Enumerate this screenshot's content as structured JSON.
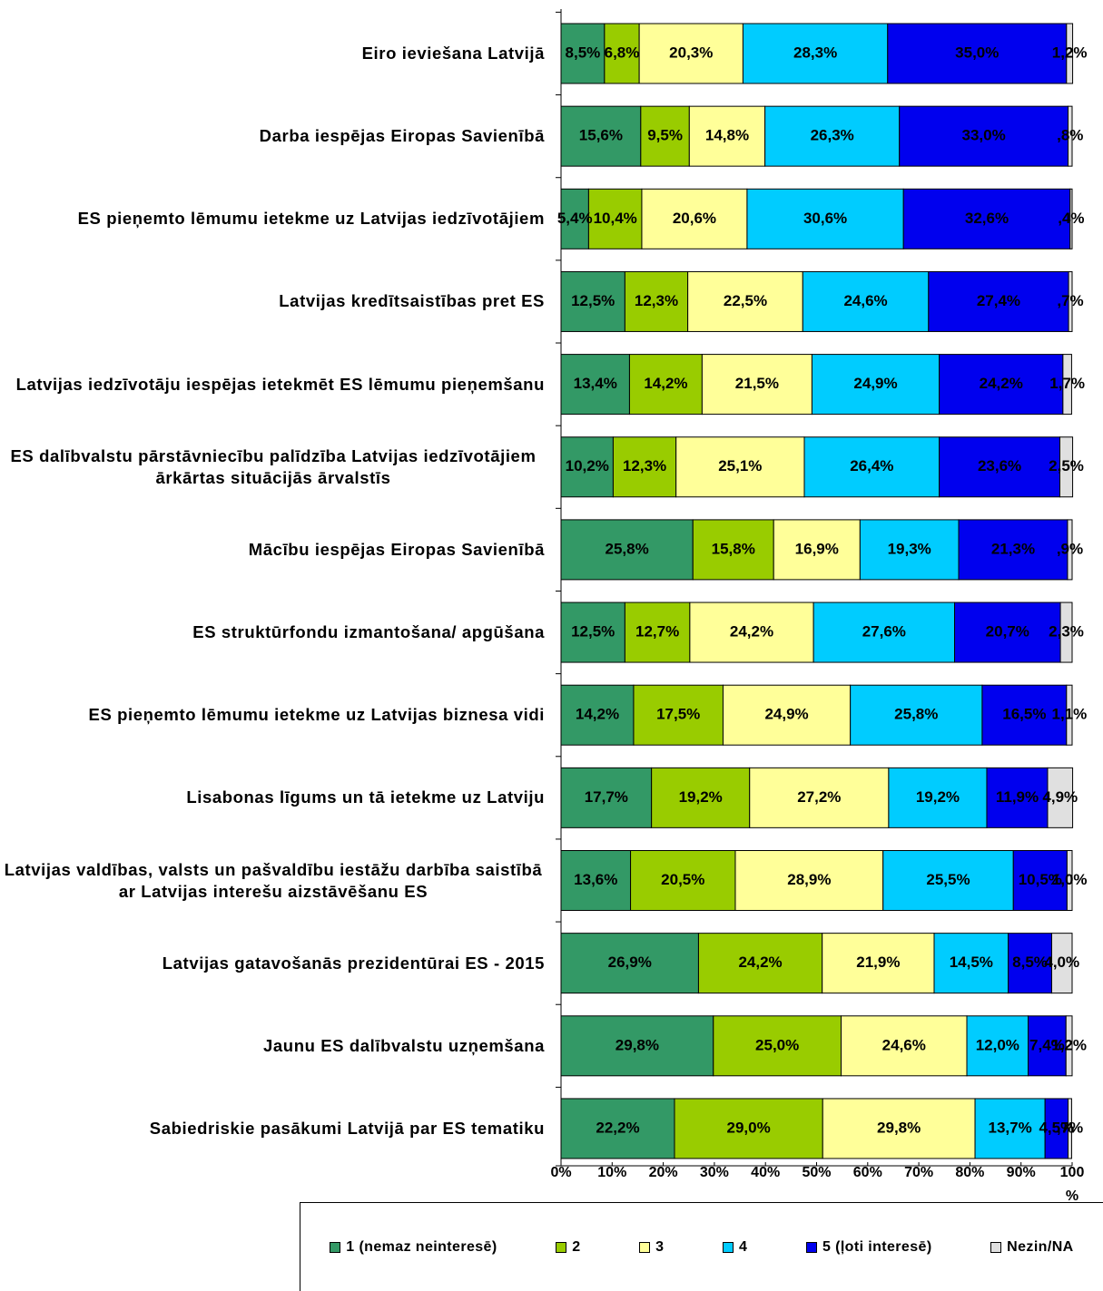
{
  "chart_data": {
    "type": "stacked-bar-horizontal",
    "categories": [
      "Eiro ieviešana Latvijā",
      "Darba iespējas Eiropas Savienībā",
      "ES pieņemto lēmumu ietekme uz Latvijas iedzīvotājiem",
      "Latvijas kredītsaistības pret ES",
      "Latvijas iedzīvotāju iespējas ietekmēt ES lēmumu pieņemšanu",
      "ES dalībvalstu pārstāvniecību palīdzība Latvijas iedzīvotājiem ārkārtas situācijās ārvalstīs",
      "Mācību iespējas Eiropas Savienībā",
      "ES struktūrfondu izmantošana/ apgūšana",
      "ES pieņemto lēmumu ietekme uz Latvijas biznesa vidi",
      "Lisabonas līgums un tā ietekme uz Latviju",
      "Latvijas valdības, valsts un pašvaldību iestāžu darbība saistībā ar Latvijas interešu aizstāvēšanu ES",
      "Latvijas gatavošanās prezidentūrai ES - 2015",
      "Jaunu ES dalībvalstu uzņemšana",
      "Sabiedriskie pasākumi Latvijā par ES tematiku"
    ],
    "series": [
      {
        "name": "1 (nemaz neinteresē)",
        "color": "#339966",
        "values": [
          8.5,
          15.6,
          5.4,
          12.5,
          13.4,
          10.2,
          25.8,
          12.5,
          14.2,
          17.7,
          13.6,
          26.9,
          29.8,
          22.2
        ],
        "value_labels": [
          "8,5%",
          "15,6%",
          "5,4%",
          "12,5%",
          "13,4%",
          "10,2%",
          "25,8%",
          "12,5%",
          "14,2%",
          "17,7%",
          "13,6%",
          "26,9%",
          "29,8%",
          "22,2%"
        ]
      },
      {
        "name": "2",
        "color": "#99cc00",
        "values": [
          6.8,
          9.5,
          10.4,
          12.3,
          14.2,
          12.3,
          15.8,
          12.7,
          17.5,
          19.2,
          20.5,
          24.2,
          25.0,
          29.0
        ],
        "value_labels": [
          "6,8%",
          "9,5%",
          "10,4%",
          "12,3%",
          "14,2%",
          "12,3%",
          "15,8%",
          "12,7%",
          "17,5%",
          "19,2%",
          "20,5%",
          "24,2%",
          "25,0%",
          "29,0%"
        ]
      },
      {
        "name": "3",
        "color": "#ffff99",
        "values": [
          20.3,
          14.8,
          20.6,
          22.5,
          21.5,
          25.1,
          16.9,
          24.2,
          24.9,
          27.2,
          28.9,
          21.9,
          24.6,
          29.8
        ],
        "value_labels": [
          "20,3%",
          "14,8%",
          "20,6%",
          "22,5%",
          "21,5%",
          "25,1%",
          "16,9%",
          "24,2%",
          "24,9%",
          "27,2%",
          "28,9%",
          "21,9%",
          "24,6%",
          "29,8%"
        ]
      },
      {
        "name": "4",
        "color": "#00ccff",
        "values": [
          28.3,
          26.3,
          30.6,
          24.6,
          24.9,
          26.4,
          19.3,
          27.6,
          25.8,
          19.2,
          25.5,
          14.5,
          12.0,
          13.7
        ],
        "value_labels": [
          "28,3%",
          "26,3%",
          "30,6%",
          "24,6%",
          "24,9%",
          "26,4%",
          "19,3%",
          "27,6%",
          "25,8%",
          "19,2%",
          "25,5%",
          "14,5%",
          "12,0%",
          "13,7%"
        ]
      },
      {
        "name": "5 (ļoti interesē)",
        "color": "#0000ee",
        "values": [
          35.0,
          33.0,
          32.6,
          27.4,
          24.2,
          23.6,
          21.3,
          20.7,
          16.5,
          11.9,
          10.5,
          8.5,
          7.4,
          4.5
        ],
        "value_labels": [
          "35,0%",
          "33,0%",
          "32,6%",
          "27,4%",
          "24,2%",
          "23,6%",
          "21,3%",
          "20,7%",
          "16,5%",
          "11,9%",
          "10,5%",
          "8,5%",
          "7,4%",
          "4,5%"
        ]
      },
      {
        "name": "Nezin/NA",
        "color": "#e0e0e0",
        "values": [
          1.2,
          0.8,
          0.4,
          0.7,
          1.7,
          2.5,
          0.9,
          2.3,
          1.1,
          4.9,
          1.0,
          4.0,
          1.2,
          0.7
        ],
        "value_labels": [
          "1,2%",
          ",8%",
          ",4%",
          ",7%",
          "1,7%",
          "2,5%",
          ",9%",
          "2,3%",
          "1,1%",
          "4,9%",
          "1,0%",
          "4,0%",
          "1,2%",
          ",7%"
        ]
      }
    ],
    "xlim": [
      0,
      100
    ],
    "xticks": [
      {
        "value": 0,
        "label": "0%"
      },
      {
        "value": 10,
        "label": "10%"
      },
      {
        "value": 20,
        "label": "20%"
      },
      {
        "value": 30,
        "label": "30%"
      },
      {
        "value": 40,
        "label": "40%"
      },
      {
        "value": 50,
        "label": "50%"
      },
      {
        "value": 60,
        "label": "60%"
      },
      {
        "value": 70,
        "label": "70%"
      },
      {
        "value": 80,
        "label": "80%"
      },
      {
        "value": 90,
        "label": "90%"
      },
      {
        "value": 100,
        "label": "100 %"
      }
    ],
    "legend": "bottom"
  }
}
